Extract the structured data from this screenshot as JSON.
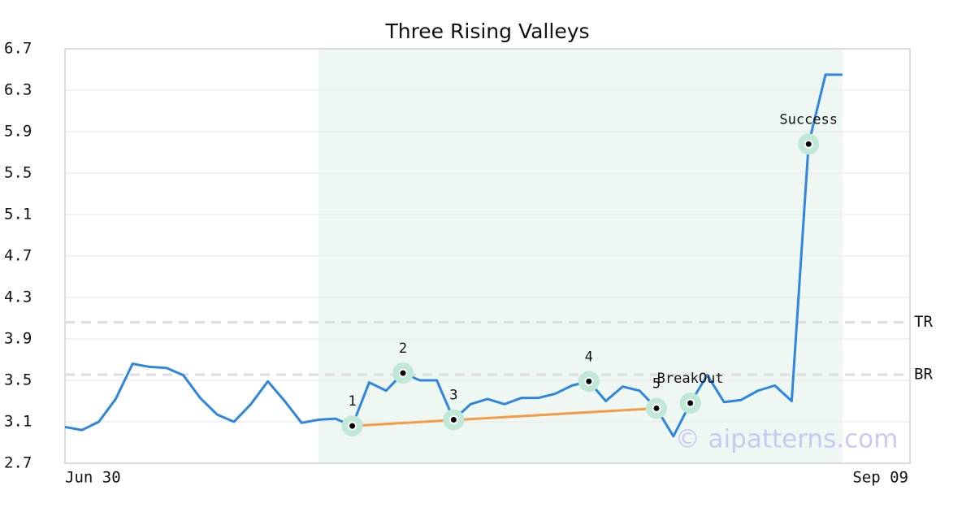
{
  "chart_data": {
    "type": "line",
    "title": "Three Rising Valleys",
    "xlim": [
      0,
      50
    ],
    "xticks": [
      {
        "value": 0,
        "label": "Jun 30"
      },
      {
        "value": 50,
        "label": "Sep 09"
      }
    ],
    "ylim": [
      2.7,
      6.7
    ],
    "yticks": [
      2.7,
      3.1,
      3.5,
      3.9,
      4.3,
      4.7,
      5.1,
      5.5,
      5.9,
      6.3,
      6.7
    ],
    "grid": true,
    "series": [
      {
        "color": "#2e86de",
        "values": [
          3.05,
          3.02,
          3.1,
          3.32,
          3.66,
          3.63,
          3.62,
          3.55,
          3.33,
          3.17,
          3.1,
          3.27,
          3.49,
          3.3,
          3.09,
          3.12,
          3.13,
          3.06,
          3.48,
          3.4,
          3.57,
          3.5,
          3.5,
          3.12,
          3.27,
          3.32,
          3.27,
          3.33,
          3.33,
          3.37,
          3.45,
          3.49,
          3.3,
          3.44,
          3.4,
          3.23,
          2.96,
          3.28,
          3.55,
          3.29,
          3.31,
          3.4,
          3.45,
          3.3,
          5.78,
          6.45,
          6.45
        ]
      }
    ],
    "shade": {
      "x": [
        15,
        46
      ],
      "color": "#eff7f3"
    },
    "trendline": {
      "x": [
        17,
        35
      ],
      "y": [
        3.06,
        3.23
      ],
      "color": "#f39c45"
    },
    "reference_lines": [
      {
        "label": "TR",
        "value": 4.06
      },
      {
        "label": "BR",
        "value": 3.555
      }
    ],
    "markers": [
      {
        "label": "1",
        "x": 17,
        "y": 3.06
      },
      {
        "label": "2",
        "x": 20,
        "y": 3.57
      },
      {
        "label": "3",
        "x": 23,
        "y": 3.12
      },
      {
        "label": "4",
        "x": 31,
        "y": 3.49
      },
      {
        "label": "5",
        "x": 35,
        "y": 3.23
      },
      {
        "label": "BreakOut",
        "x": 37,
        "y": 3.28
      },
      {
        "label": "Success",
        "x": 44,
        "y": 5.78
      }
    ],
    "watermark": "© aipatterns.com"
  }
}
